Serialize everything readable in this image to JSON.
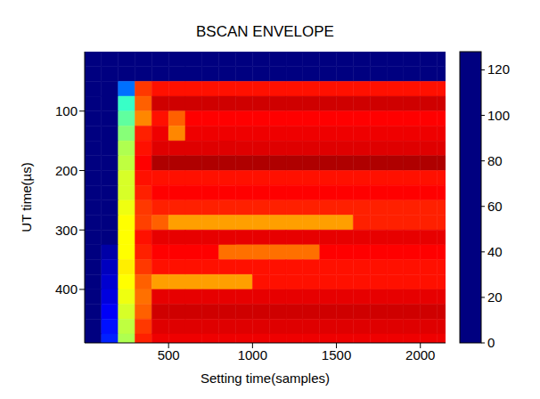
{
  "chart_data": {
    "type": "heatmap",
    "title": "BSCAN ENVELOPE",
    "x_label": "Setting time(samples)",
    "y_label": "UT time(µs)",
    "xlim": [
      0,
      2150
    ],
    "xticks": [
      500,
      1000,
      1500,
      2000
    ],
    "ylim": [
      0,
      490
    ],
    "yticks": [
      100,
      200,
      300,
      400
    ],
    "grid": false,
    "x_edges": [
      0,
      100,
      200,
      300,
      400,
      500,
      600,
      700,
      800,
      900,
      1000,
      1100,
      1200,
      1300,
      1400,
      1500,
      1600,
      1700,
      1800,
      1900,
      2000,
      2100,
      2150
    ],
    "y_edges": [
      0,
      25,
      50,
      75,
      100,
      125,
      150,
      175,
      200,
      225,
      250,
      275,
      300,
      325,
      350,
      375,
      400,
      425,
      450,
      475,
      490
    ],
    "cells": [
      [
        0,
        0,
        0,
        0,
        0,
        0,
        0,
        0,
        0,
        0,
        0,
        0,
        0,
        0,
        0,
        0,
        0,
        0,
        0,
        0,
        0,
        0
      ],
      [
        0,
        0,
        0,
        0,
        0,
        0,
        0,
        0,
        0,
        0,
        0,
        0,
        0,
        0,
        0,
        0,
        0,
        0,
        0,
        0,
        0,
        0
      ],
      [
        0,
        0,
        30,
        105,
        110,
        110,
        110,
        110,
        110,
        110,
        110,
        110,
        110,
        110,
        110,
        110,
        110,
        110,
        110,
        110,
        110,
        110
      ],
      [
        0,
        0,
        55,
        100,
        118,
        118,
        118,
        118,
        118,
        118,
        118,
        118,
        118,
        118,
        118,
        118,
        118,
        118,
        118,
        118,
        118,
        118
      ],
      [
        0,
        0,
        60,
        95,
        110,
        100,
        112,
        112,
        112,
        112,
        112,
        112,
        112,
        112,
        112,
        112,
        112,
        112,
        112,
        112,
        112,
        112
      ],
      [
        0,
        0,
        65,
        108,
        114,
        95,
        114,
        114,
        114,
        114,
        114,
        114,
        114,
        114,
        114,
        114,
        114,
        114,
        114,
        114,
        114,
        114
      ],
      [
        0,
        0,
        70,
        110,
        116,
        116,
        116,
        116,
        116,
        116,
        116,
        116,
        116,
        116,
        116,
        116,
        116,
        116,
        116,
        116,
        116,
        116
      ],
      [
        0,
        0,
        72,
        112,
        122,
        122,
        122,
        122,
        122,
        122,
        122,
        122,
        122,
        122,
        122,
        122,
        122,
        122,
        122,
        122,
        122,
        122
      ],
      [
        0,
        0,
        75,
        110,
        110,
        110,
        110,
        110,
        110,
        110,
        110,
        110,
        110,
        110,
        110,
        110,
        110,
        110,
        110,
        110,
        110,
        110
      ],
      [
        0,
        0,
        75,
        108,
        112,
        112,
        112,
        112,
        112,
        112,
        112,
        112,
        112,
        112,
        112,
        112,
        112,
        112,
        112,
        112,
        112,
        112
      ],
      [
        0,
        0,
        78,
        105,
        108,
        108,
        108,
        108,
        108,
        108,
        108,
        108,
        108,
        108,
        108,
        108,
        108,
        108,
        108,
        108,
        108,
        108
      ],
      [
        0,
        0,
        80,
        104,
        100,
        92,
        92,
        92,
        92,
        92,
        92,
        92,
        92,
        92,
        92,
        92,
        108,
        108,
        108,
        108,
        108,
        108
      ],
      [
        0,
        0,
        80,
        110,
        115,
        115,
        115,
        115,
        115,
        115,
        115,
        115,
        115,
        115,
        115,
        115,
        115,
        115,
        115,
        115,
        115,
        115
      ],
      [
        0,
        5,
        80,
        108,
        112,
        112,
        112,
        112,
        98,
        98,
        98,
        98,
        98,
        98,
        112,
        112,
        112,
        112,
        112,
        112,
        112,
        112
      ],
      [
        0,
        8,
        82,
        105,
        110,
        110,
        110,
        110,
        110,
        110,
        110,
        110,
        110,
        110,
        110,
        110,
        110,
        110,
        110,
        110,
        110,
        110
      ],
      [
        0,
        10,
        80,
        100,
        92,
        92,
        92,
        92,
        92,
        92,
        110,
        110,
        110,
        110,
        110,
        110,
        110,
        110,
        110,
        110,
        110,
        110
      ],
      [
        0,
        12,
        78,
        98,
        115,
        115,
        115,
        115,
        115,
        115,
        115,
        115,
        115,
        115,
        115,
        115,
        115,
        115,
        115,
        115,
        115,
        115
      ],
      [
        0,
        15,
        75,
        100,
        118,
        118,
        118,
        118,
        118,
        118,
        118,
        118,
        118,
        118,
        118,
        118,
        118,
        118,
        118,
        118,
        118,
        118
      ],
      [
        0,
        18,
        72,
        105,
        116,
        116,
        116,
        116,
        116,
        116,
        116,
        116,
        116,
        116,
        116,
        116,
        116,
        116,
        116,
        116,
        116,
        116
      ],
      [
        0,
        20,
        70,
        108,
        114,
        114,
        114,
        114,
        114,
        114,
        114,
        114,
        114,
        114,
        114,
        114,
        114,
        114,
        114,
        114,
        114,
        114
      ]
    ],
    "colorbar": {
      "range": [
        0,
        128
      ],
      "ticks": [
        0,
        20,
        40,
        60,
        80,
        100,
        120
      ]
    }
  }
}
